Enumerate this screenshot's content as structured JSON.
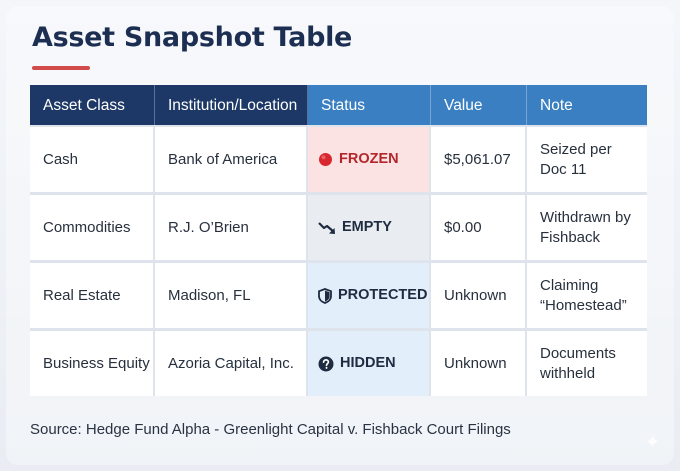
{
  "page": {
    "title": "Asset Snapshot Table",
    "source": "Source: Hedge Fund Alpha - Greenlight Capital v. Fishback Court Filings"
  },
  "table": {
    "headers": [
      "Asset Class",
      "Institution/Location",
      "Status",
      "Value",
      "Note"
    ],
    "rows": [
      {
        "asset_class": "Cash",
        "institution": "Bank of America",
        "status": "FROZEN",
        "status_icon": "red-circle-icon",
        "value": "$5,061.07",
        "note_line1": "Seized per",
        "note_line2": "Doc 11"
      },
      {
        "asset_class": "Commodities",
        "institution": "R.J. O’Brien",
        "status": "EMPTY",
        "status_icon": "trending-down-icon",
        "value": "$0.00",
        "note_line1": "Withdrawn by",
        "note_line2": "Fishback"
      },
      {
        "asset_class": "Real Estate",
        "institution": "Madison, FL",
        "status": "PROTECTED",
        "status_icon": "shield-icon",
        "value": "Unknown",
        "note_line1": "Claiming",
        "note_line2": "“Homestead”"
      },
      {
        "asset_class": "Business Equity",
        "institution": "Azoria Capital, Inc.",
        "status": "HIDDEN",
        "status_icon": "question-circle-icon",
        "value": "Unknown",
        "note_line1": "Documents",
        "note_line2": "withheld"
      }
    ]
  },
  "colors": {
    "title": "#1c2f52",
    "accent_underline": "#d24b4b",
    "header_dark": "#1d3866",
    "header_light": "#3a7fc1",
    "frozen_bg": "#fbe3e3",
    "frozen_text": "#b3262b",
    "empty_bg": "#e9ecf1",
    "protected_bg": "#e2eef9"
  }
}
